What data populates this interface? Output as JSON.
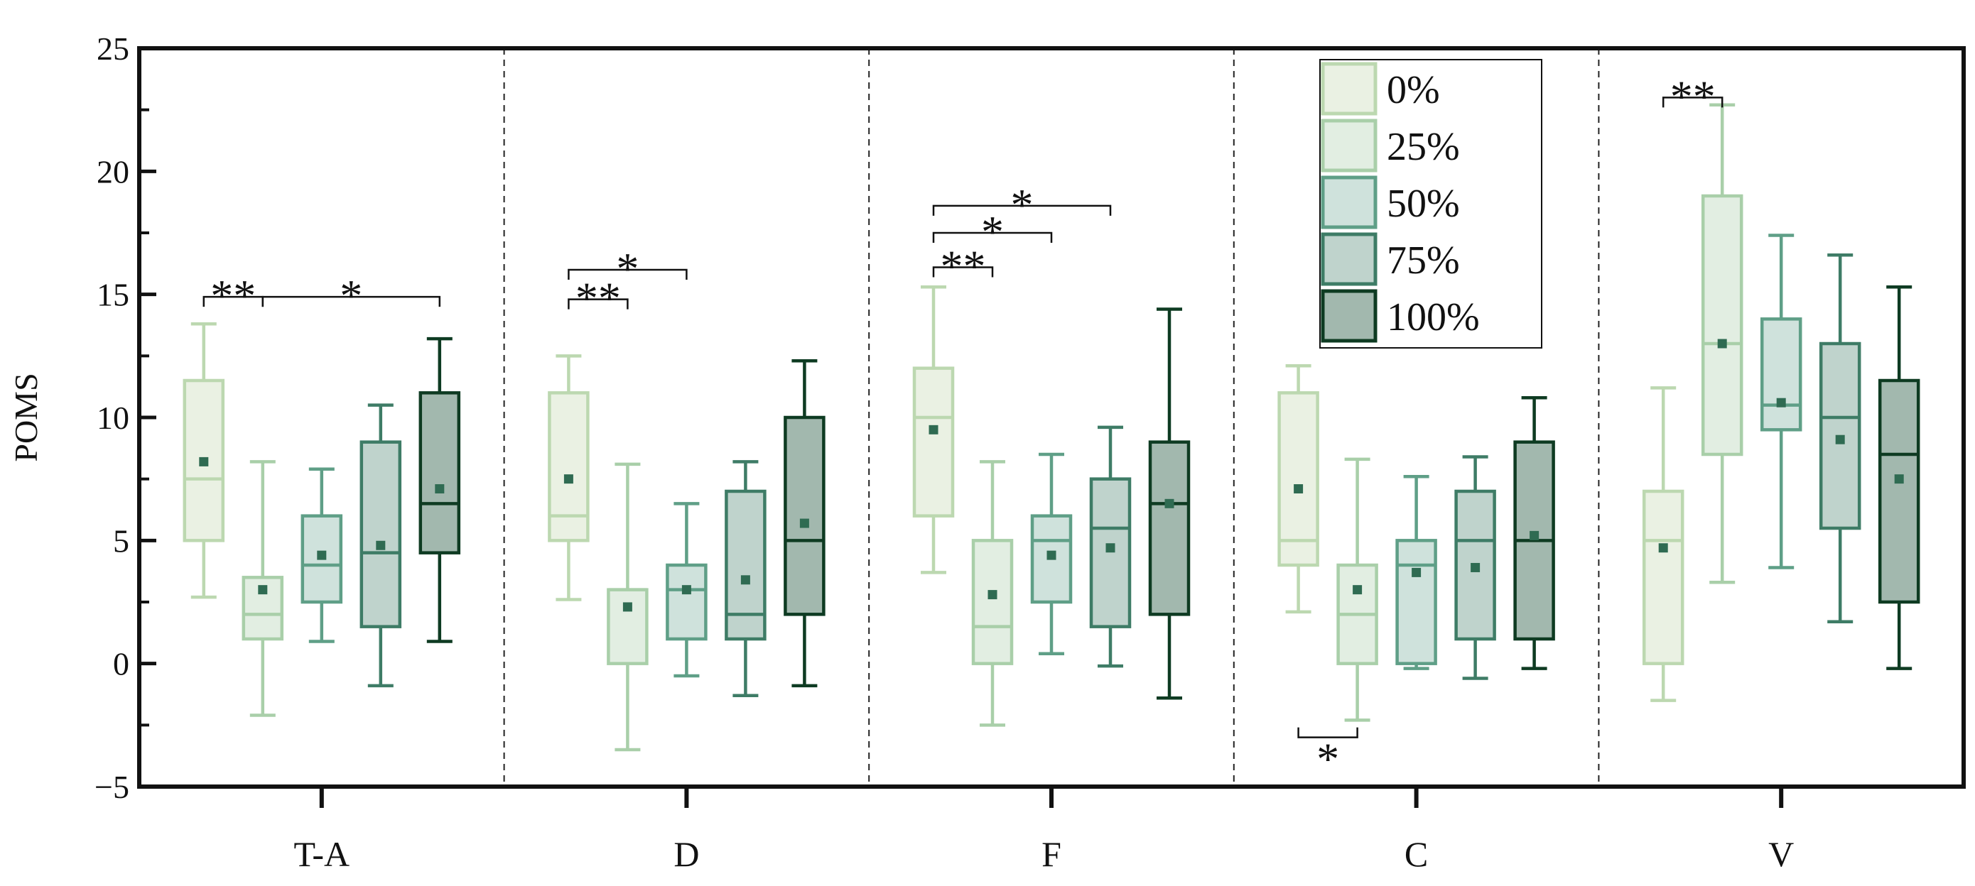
{
  "chart_data": {
    "type": "box",
    "ylabel": "POMS",
    "xlabel": "",
    "ylim": [
      -5,
      25
    ],
    "yticks": [
      -5,
      0,
      5,
      10,
      15,
      20,
      25
    ],
    "ytick_labels": [
      "−5",
      "0",
      "5",
      "10",
      "15",
      "20",
      "25"
    ],
    "categories": [
      "T-A",
      "D",
      "F",
      "C",
      "V"
    ],
    "legend_position": "top-right",
    "series": [
      {
        "name": "0%",
        "fill": "#eaf1e3",
        "stroke": "#bcd8b0",
        "stats": [
          {
            "whisker_low": 2.7,
            "q1": 5.0,
            "median": 7.5,
            "q3": 11.5,
            "whisker_high": 13.8,
            "mean": 8.2
          },
          {
            "whisker_low": 2.6,
            "q1": 5.0,
            "median": 6.0,
            "q3": 11.0,
            "whisker_high": 12.5,
            "mean": 7.5
          },
          {
            "whisker_low": 3.7,
            "q1": 6.0,
            "median": 10.0,
            "q3": 12.0,
            "whisker_high": 15.3,
            "mean": 9.5
          },
          {
            "whisker_low": 2.1,
            "q1": 4.0,
            "median": 5.0,
            "q3": 11.0,
            "whisker_high": 12.1,
            "mean": 7.1
          },
          {
            "whisker_low": -1.5,
            "q1": 0.0,
            "median": 5.0,
            "q3": 7.0,
            "whisker_high": 11.2,
            "mean": 4.7
          }
        ]
      },
      {
        "name": "25%",
        "fill": "#e2eee2",
        "stroke": "#a9cfa9",
        "stats": [
          {
            "whisker_low": -2.1,
            "q1": 1.0,
            "median": 2.0,
            "q3": 3.5,
            "whisker_high": 8.2,
            "mean": 3.0
          },
          {
            "whisker_low": -3.5,
            "q1": 0.0,
            "median": 3.0,
            "q3": 3.0,
            "whisker_high": 8.1,
            "mean": 2.3
          },
          {
            "whisker_low": -2.5,
            "q1": 0.0,
            "median": 1.5,
            "q3": 5.0,
            "whisker_high": 8.2,
            "mean": 2.8
          },
          {
            "whisker_low": -2.3,
            "q1": 0.0,
            "median": 2.0,
            "q3": 4.0,
            "whisker_high": 8.3,
            "mean": 3.0
          },
          {
            "whisker_low": 3.3,
            "q1": 8.5,
            "median": 13.0,
            "q3": 19.0,
            "whisker_high": 22.7,
            "mean": 13.0
          }
        ]
      },
      {
        "name": "50%",
        "fill": "#cfe2dc",
        "stroke": "#5f9f87",
        "stats": [
          {
            "whisker_low": 0.9,
            "q1": 2.5,
            "median": 4.0,
            "q3": 6.0,
            "whisker_high": 7.9,
            "mean": 4.4
          },
          {
            "whisker_low": -0.5,
            "q1": 1.0,
            "median": 3.0,
            "q3": 4.0,
            "whisker_high": 6.5,
            "mean": 3.0
          },
          {
            "whisker_low": 0.4,
            "q1": 2.5,
            "median": 5.0,
            "q3": 6.0,
            "whisker_high": 8.5,
            "mean": 4.4
          },
          {
            "whisker_low": -0.2,
            "q1": 0.0,
            "median": 4.0,
            "q3": 5.0,
            "whisker_high": 7.6,
            "mean": 3.7
          },
          {
            "whisker_low": 3.9,
            "q1": 9.5,
            "median": 10.5,
            "q3": 14.0,
            "whisker_high": 17.4,
            "mean": 10.6
          }
        ]
      },
      {
        "name": "75%",
        "fill": "#bfd3cc",
        "stroke": "#3e7c66",
        "stats": [
          {
            "whisker_low": -0.9,
            "q1": 1.5,
            "median": 4.5,
            "q3": 9.0,
            "whisker_high": 10.5,
            "mean": 4.8
          },
          {
            "whisker_low": -1.3,
            "q1": 1.0,
            "median": 2.0,
            "q3": 7.0,
            "whisker_high": 8.2,
            "mean": 3.4
          },
          {
            "whisker_low": -0.1,
            "q1": 1.5,
            "median": 5.5,
            "q3": 7.5,
            "whisker_high": 9.6,
            "mean": 4.7
          },
          {
            "whisker_low": -0.6,
            "q1": 1.0,
            "median": 5.0,
            "q3": 7.0,
            "whisker_high": 8.4,
            "mean": 3.9
          },
          {
            "whisker_low": 1.7,
            "q1": 5.5,
            "median": 10.0,
            "q3": 13.0,
            "whisker_high": 16.6,
            "mean": 9.1
          }
        ]
      },
      {
        "name": "100%",
        "fill": "#a2b8ae",
        "stroke": "#0e3b22",
        "stats": [
          {
            "whisker_low": 0.9,
            "q1": 4.5,
            "median": 6.5,
            "q3": 11.0,
            "whisker_high": 13.2,
            "mean": 7.1
          },
          {
            "whisker_low": -0.9,
            "q1": 2.0,
            "median": 5.0,
            "q3": 10.0,
            "whisker_high": 12.3,
            "mean": 5.7
          },
          {
            "whisker_low": -1.4,
            "q1": 2.0,
            "median": 6.5,
            "q3": 9.0,
            "whisker_high": 14.4,
            "mean": 6.5
          },
          {
            "whisker_low": -0.2,
            "q1": 1.0,
            "median": 5.0,
            "q3": 9.0,
            "whisker_high": 10.8,
            "mean": 5.2
          },
          {
            "whisker_low": -0.2,
            "q1": 2.5,
            "median": 8.5,
            "q3": 11.5,
            "whisker_high": 15.3,
            "mean": 7.5
          }
        ]
      }
    ],
    "significance": [
      {
        "category": 0,
        "from": 0,
        "to": 1,
        "label": "**",
        "y": 14.9,
        "side": "above"
      },
      {
        "category": 0,
        "from": 1,
        "to": 4,
        "label": "*",
        "y": 14.9,
        "side": "above"
      },
      {
        "category": 1,
        "from": 0,
        "to": 1,
        "label": "**",
        "y": 14.8,
        "side": "above"
      },
      {
        "category": 1,
        "from": 0,
        "to": 2,
        "label": "*",
        "y": 16.0,
        "side": "above"
      },
      {
        "category": 2,
        "from": 0,
        "to": 1,
        "label": "**",
        "y": 16.1,
        "side": "above"
      },
      {
        "category": 2,
        "from": 0,
        "to": 2,
        "label": "*",
        "y": 17.5,
        "side": "above"
      },
      {
        "category": 2,
        "from": 0,
        "to": 3,
        "label": "*",
        "y": 18.6,
        "side": "above"
      },
      {
        "category": 3,
        "from": 0,
        "to": 1,
        "label": "*",
        "y": -3.0,
        "side": "below"
      },
      {
        "category": 4,
        "from": 0,
        "to": 1,
        "label": "**",
        "y": 23.0,
        "side": "above"
      }
    ]
  }
}
